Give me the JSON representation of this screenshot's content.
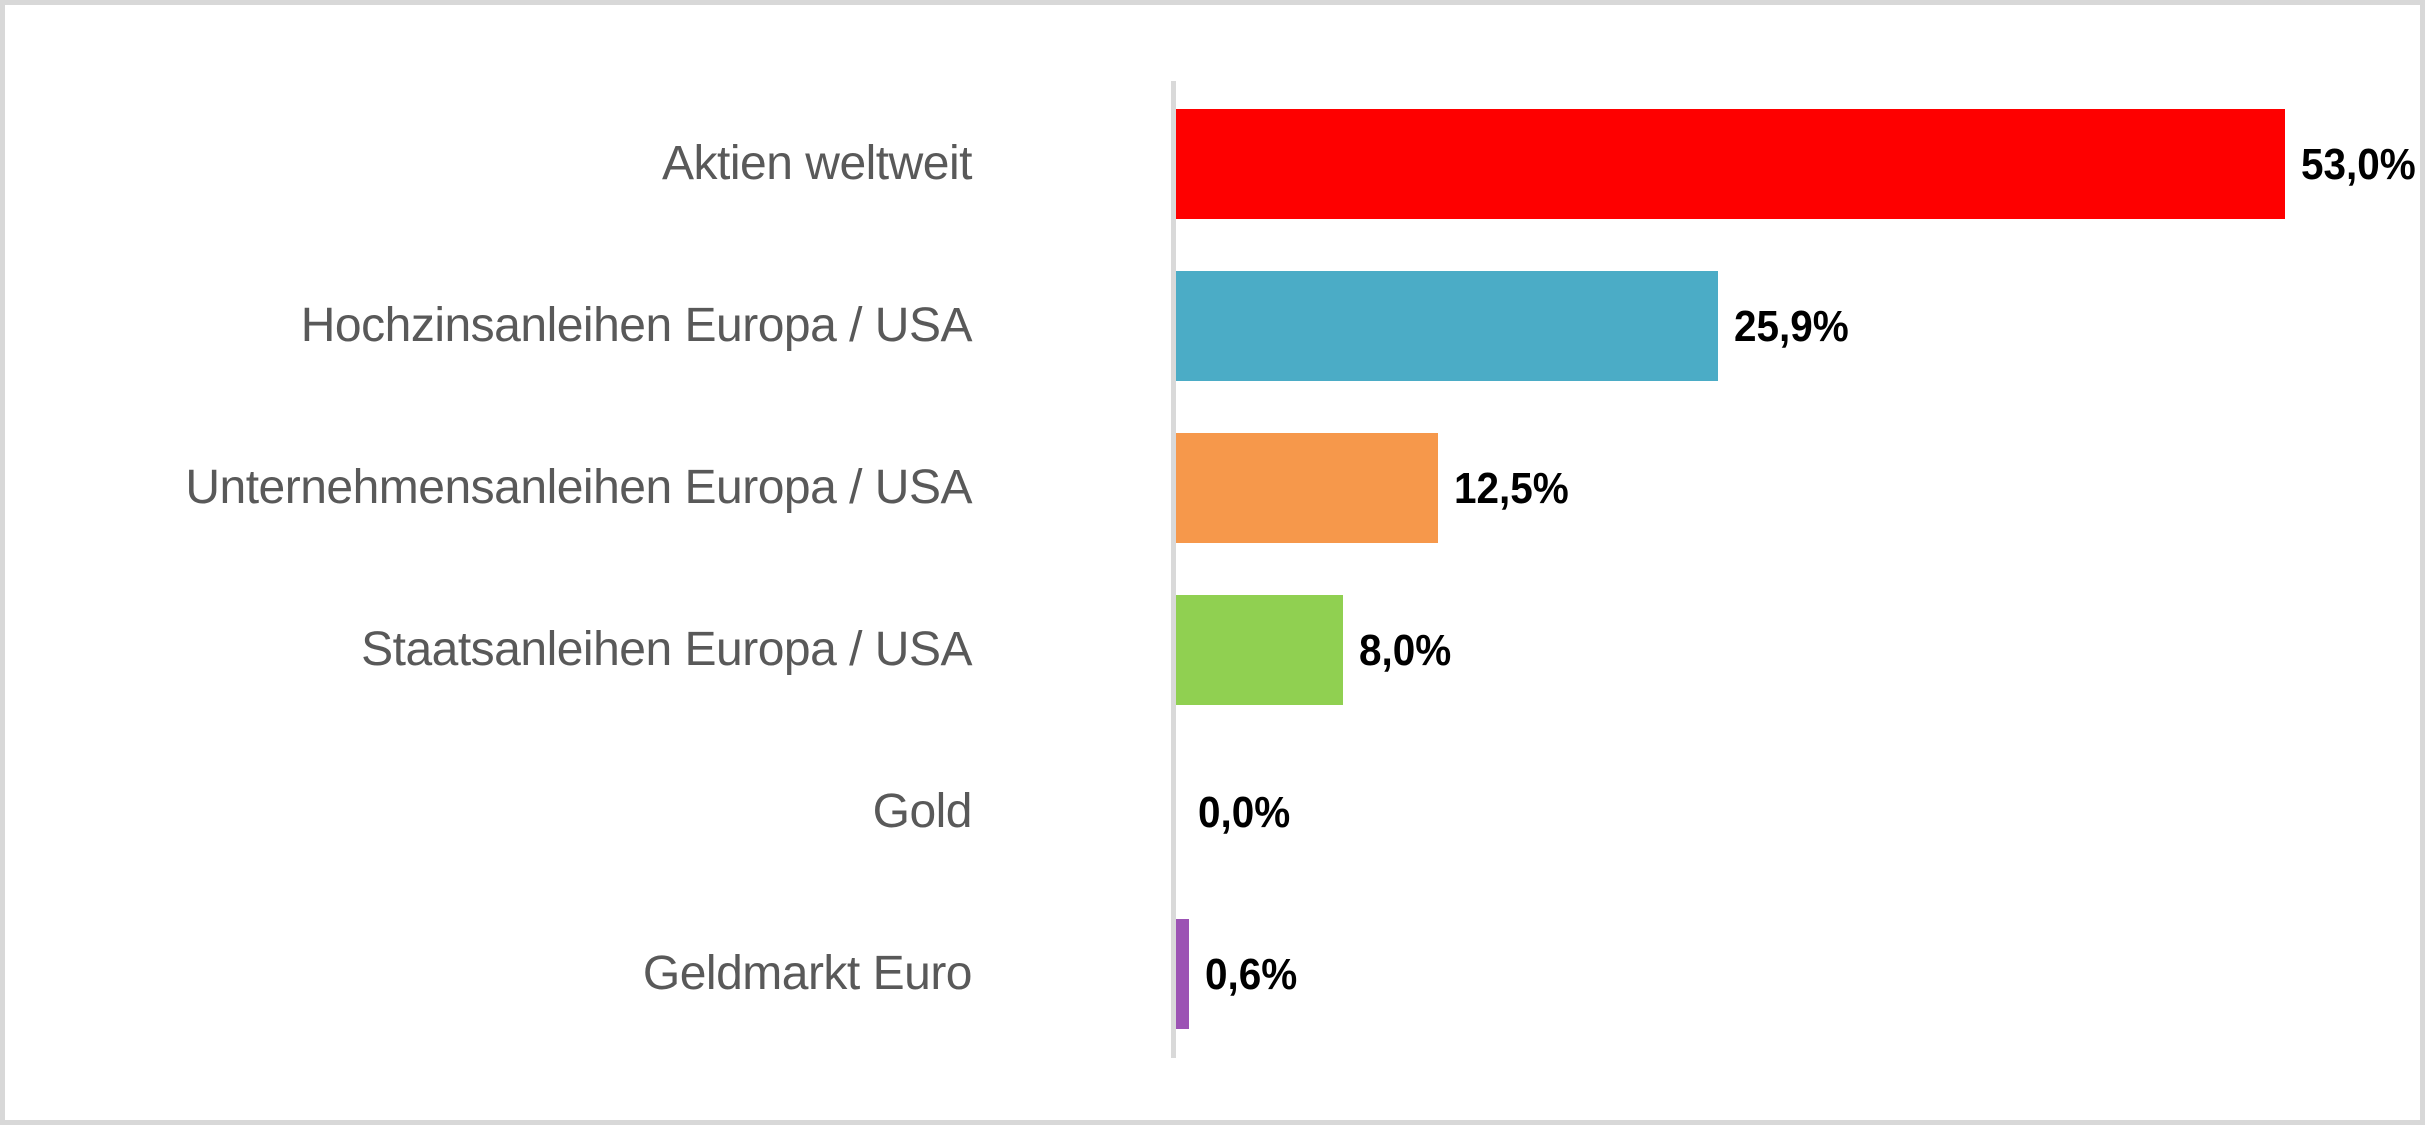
{
  "chart_data": {
    "type": "bar",
    "orientation": "horizontal",
    "title": "",
    "xlabel": "",
    "ylabel": "",
    "grid": false,
    "legend": false,
    "xlim": [
      0,
      57.5
    ],
    "categories": [
      "Aktien weltweit",
      "Hochzinsanleihen Europa / USA",
      "Unternehmensanleihen Europa / USA",
      "Staatsanleihen Europa / USA",
      "Gold",
      "Geldmarkt Euro"
    ],
    "values": [
      53.0,
      25.9,
      12.5,
      8.0,
      0.0,
      0.6
    ],
    "value_labels": [
      "53,0%",
      "25,9%",
      "12,5%",
      "8,0%",
      "0,0%",
      "0,6%"
    ],
    "bar_colors": [
      "#fe0000",
      "#4bacc6",
      "#f6984b",
      "#90d051",
      "#c0c0c0",
      "#9c53b4"
    ],
    "category_label_color": "#595959",
    "value_label_color": "#000000"
  },
  "colors": {
    "frame_border": "#d8d8d8",
    "axis_line": "#d9d9d9",
    "background": "#ffffff"
  }
}
